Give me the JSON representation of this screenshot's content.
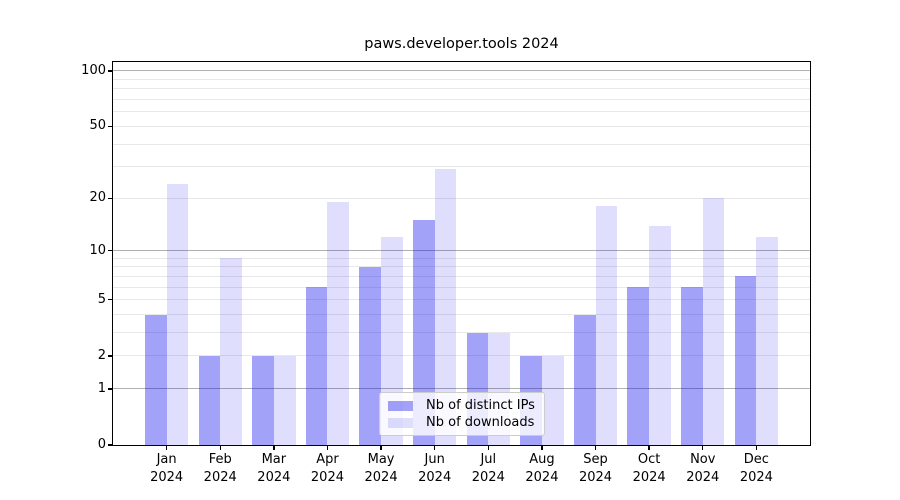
{
  "chart_data": {
    "type": "bar",
    "title": "paws.developer.tools 2024",
    "categories": [
      "Jan",
      "Feb",
      "Mar",
      "Apr",
      "May",
      "Jun",
      "Jul",
      "Aug",
      "Sep",
      "Oct",
      "Nov",
      "Dec"
    ],
    "category_year": "2024",
    "series": [
      {
        "name": "Nb of distinct IPs",
        "values": [
          4,
          2,
          2,
          6,
          8,
          15,
          3,
          2,
          4,
          6,
          6,
          7
        ],
        "color": "rgba(10,10,240,0.38)",
        "color_hex_on_white": "#a2a2f9"
      },
      {
        "name": "Nb of downloads",
        "values": [
          24,
          9,
          2,
          19,
          12,
          29,
          3,
          2,
          18,
          14,
          20,
          12
        ],
        "color": "rgba(10,10,240,0.13)",
        "color_hex_on_white": "#dfdffd"
      }
    ],
    "xlabel": "",
    "ylabel": "",
    "y_axis": {
      "scale": "log1p",
      "ticks": [
        0,
        1,
        2,
        5,
        10,
        20,
        50,
        100
      ],
      "range": [
        0,
        112
      ],
      "grid_major": [
        1,
        10,
        100
      ],
      "grid_minor": [
        2,
        3,
        4,
        5,
        6,
        7,
        8,
        9,
        20,
        30,
        40,
        50,
        60,
        70,
        80,
        90
      ]
    },
    "grid": true,
    "legend_position": "lower center",
    "grid_major_color": "#b0b0b0",
    "grid_minor_color": "#e8e8e8",
    "spine_color": "#000000",
    "background_color": "#ffffff"
  }
}
